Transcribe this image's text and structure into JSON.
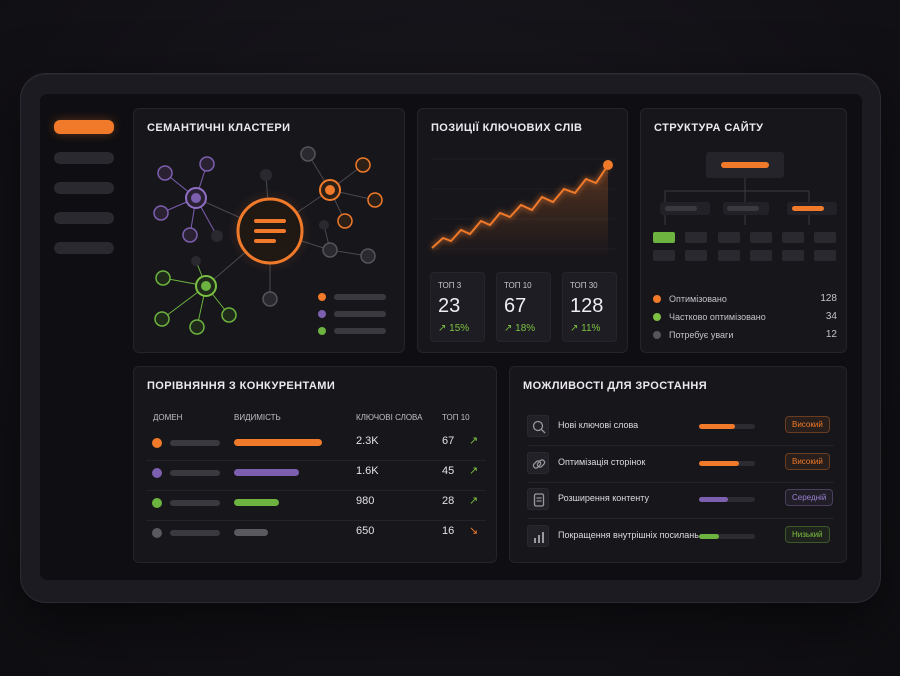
{
  "clusters": {
    "title": "Семантичні кластери",
    "colors": {
      "orange": "#f07a2a",
      "purple": "#7d5fb0",
      "green": "#6cb33f",
      "gray": "#55545b"
    }
  },
  "positions": {
    "title": "Позиції ключових слів",
    "stats": [
      {
        "label": "ТОП 3",
        "value": "23",
        "delta": "↗ 15%"
      },
      {
        "label": "ТОП 10",
        "value": "67",
        "delta": "↗ 18%"
      },
      {
        "label": "ТОП 30",
        "value": "128",
        "delta": "↗ 11%"
      }
    ]
  },
  "structure": {
    "title": "Структура сайту",
    "legend": [
      {
        "label": "Оптимізовано",
        "value": "128",
        "color": "#f07a2a"
      },
      {
        "label": "Частково оптимізовано",
        "value": "34",
        "color": "#7dc142"
      },
      {
        "label": "Потребує уваги",
        "value": "12",
        "color": "#55545b"
      }
    ]
  },
  "competitors": {
    "title": "Порівняння з конкурентами",
    "headers": {
      "domain": "Домен",
      "visibility": "Видимість",
      "keywords": "Ключові слова",
      "top10": "Топ 10"
    },
    "rows": [
      {
        "color": "#f07a2a",
        "visibility": 0.88,
        "keywords": "2.3K",
        "top10": "67",
        "trend": "↗",
        "trend_color": "#7dc142"
      },
      {
        "color": "#7d5fb0",
        "visibility": 0.65,
        "keywords": "1.6K",
        "top10": "45",
        "trend": "↗",
        "trend_color": "#7dc142"
      },
      {
        "color": "#6cb33f",
        "visibility": 0.45,
        "keywords": "980",
        "top10": "28",
        "trend": "↗",
        "trend_color": "#7dc142"
      },
      {
        "color": "#5a5960",
        "visibility": 0.34,
        "keywords": "650",
        "top10": "16",
        "trend": "↘",
        "trend_color": "#f07a2a"
      }
    ]
  },
  "growth": {
    "title": "Можливості для зростання",
    "items": [
      {
        "icon": "search-icon",
        "label": "Нові ключові слова",
        "level": 0.64,
        "color": "#f07a2a",
        "badge": "Високий",
        "badge_color": "#f07a2a"
      },
      {
        "icon": "link-icon",
        "label": "Оптимізація сторінок",
        "level": 0.72,
        "color": "#f07a2a",
        "badge": "Високий",
        "badge_color": "#f07a2a"
      },
      {
        "icon": "document-icon",
        "label": "Розширення контенту",
        "level": 0.52,
        "color": "#7d5fb0",
        "badge": "Середній",
        "badge_color": "#9c83d0"
      },
      {
        "icon": "bar-chart-icon",
        "label": "Покращення внутрішніх посилань",
        "level": 0.36,
        "color": "#6cb33f",
        "badge": "Низький",
        "badge_color": "#7dc142"
      }
    ]
  }
}
